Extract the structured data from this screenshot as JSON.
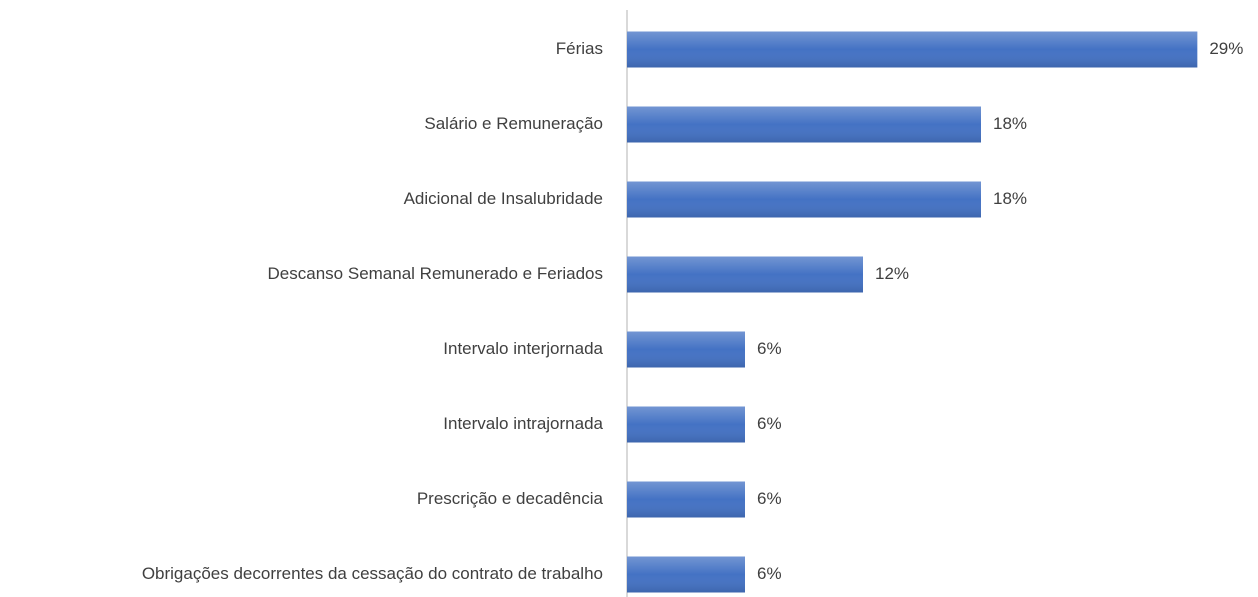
{
  "chart_data": {
    "type": "hbar",
    "categories": [
      "Férias",
      "Salário e Remuneração",
      "Adicional de Insalubridade",
      "Descanso Semanal Remunerado e Feriados",
      "Intervalo interjornada",
      "Intervalo intrajornada",
      "Prescrição e decadência",
      "Obrigações decorrentes da cessação do contrato de trabalho"
    ],
    "values": [
      29,
      18,
      18,
      12,
      6,
      6,
      6,
      6
    ],
    "value_labels": [
      "29%",
      "18%",
      "18%",
      "12%",
      "6%",
      "6%",
      "6%",
      "6%"
    ],
    "color": "#4472c4",
    "xlim": [
      0,
      30
    ]
  }
}
